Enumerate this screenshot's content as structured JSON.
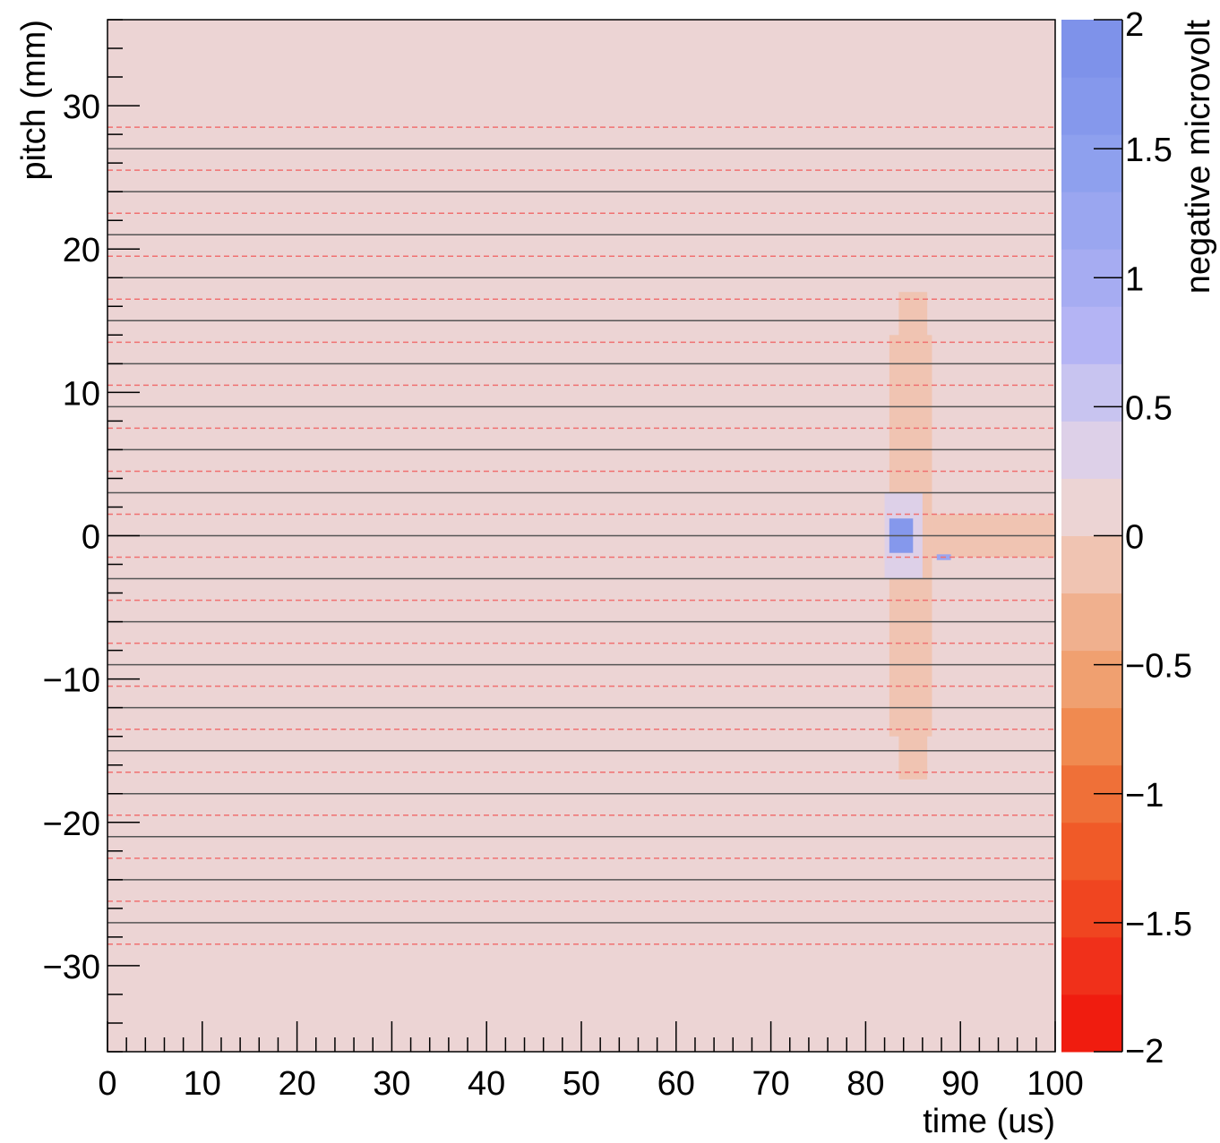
{
  "chart_data": {
    "type": "heatmap",
    "xlabel": "time (us)",
    "ylabel": "pitch (mm)",
    "zlabel": "negative microvolt",
    "xlim": [
      0,
      100
    ],
    "ylim": [
      -36,
      36
    ],
    "zlim": [
      -2,
      2
    ],
    "x_ticks": [
      0,
      10,
      20,
      30,
      40,
      50,
      60,
      70,
      80,
      90,
      100
    ],
    "x_tick_labels": [
      "0",
      "10",
      "20",
      "30",
      "40",
      "50",
      "60",
      "70",
      "80",
      "90",
      "100"
    ],
    "y_ticks": [
      -30,
      -20,
      -10,
      0,
      10,
      20,
      30
    ],
    "y_tick_labels": [
      "−30",
      "−20",
      "−10",
      "0",
      "10",
      "20",
      "30"
    ],
    "z_ticks": [
      -2,
      -1.5,
      -1,
      -0.5,
      0,
      0.5,
      1,
      1.5,
      2
    ],
    "z_tick_labels": [
      "−2",
      "−1.5",
      "−1",
      "−0.5",
      "0",
      "0.5",
      "1",
      "1.5",
      "2"
    ],
    "background_value": 0,
    "wire_lines_solid_y": [
      -27,
      -24,
      -21,
      -18,
      -15,
      -12,
      -9,
      -6,
      -3,
      0,
      3,
      6,
      9,
      12,
      15,
      18,
      21,
      24,
      27
    ],
    "wire_lines_dashed_y": [
      -28.5,
      -25.5,
      -22.5,
      -19.5,
      -16.5,
      -13.5,
      -10.5,
      -7.5,
      -4.5,
      -1.5,
      1.5,
      4.5,
      7.5,
      10.5,
      13.5,
      16.5,
      19.5,
      22.5,
      25.5,
      28.5
    ],
    "colors": {
      "solid_line": "#555555",
      "dashed_line": "#f07070",
      "palette": [
        "#f01c0f",
        "#f0301a",
        "#f04520",
        "#f05a28",
        "#ef7038",
        "#f08a50",
        "#f0a070",
        "#f0b08e",
        "#f0c4b2",
        "#ecd4d4",
        "#ddd0e8",
        "#c8c4f0",
        "#b4b4f4",
        "#a6acf2",
        "#9aa6f0",
        "#8ea0ee",
        "#8598ec",
        "#7e92ea"
      ]
    },
    "regions": [
      {
        "x": [
          87,
          100
        ],
        "y": [
          -1.5,
          1.5
        ],
        "value": -0.1
      },
      {
        "x": [
          83.5,
          86.5
        ],
        "y": [
          -17,
          17
        ],
        "value": -0.1
      },
      {
        "x": [
          82.5,
          87
        ],
        "y": [
          -14,
          14
        ],
        "value": -0.1
      },
      {
        "x": [
          82,
          86
        ],
        "y": [
          -3,
          3
        ],
        "value": 0.3
      },
      {
        "x": [
          82.5,
          85
        ],
        "y": [
          -1.2,
          1.2
        ],
        "value": 1.7
      },
      {
        "x": [
          87.5,
          89
        ],
        "y": [
          -1.7,
          -1.3
        ],
        "value": 1.2
      }
    ]
  }
}
